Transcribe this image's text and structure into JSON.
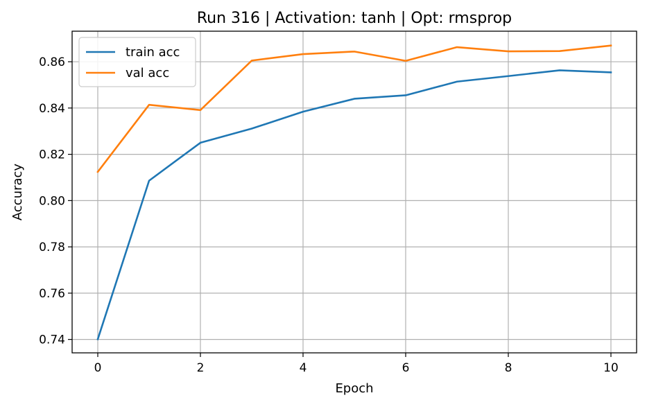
{
  "chart_data": {
    "type": "line",
    "title": "Run 316 | Activation: tanh | Opt: rmsprop",
    "xlabel": "Epoch",
    "ylabel": "Accuracy",
    "xlim": [
      -0.5,
      10.5
    ],
    "ylim": [
      0.7342,
      0.8732
    ],
    "xticks": [
      0,
      2,
      4,
      6,
      8,
      10
    ],
    "xtick_labels": [
      "0",
      "2",
      "4",
      "6",
      "8",
      "10"
    ],
    "yticks": [
      0.74,
      0.76,
      0.78,
      0.8,
      0.82,
      0.84,
      0.86
    ],
    "ytick_labels": [
      "0.74",
      "0.76",
      "0.78",
      "0.80",
      "0.82",
      "0.84",
      "0.86"
    ],
    "grid": true,
    "legend_position": "top-left",
    "x": [
      0,
      1,
      2,
      3,
      4,
      5,
      6,
      7,
      8,
      9,
      10
    ],
    "series": [
      {
        "name": "train acc",
        "color": "#1f77b4",
        "values": [
          0.7401,
          0.8086,
          0.825,
          0.8311,
          0.8384,
          0.844,
          0.8455,
          0.8514,
          0.8538,
          0.8563,
          0.8554
        ]
      },
      {
        "name": "val acc",
        "color": "#ff7f0e",
        "values": [
          0.8124,
          0.8414,
          0.8391,
          0.8605,
          0.8633,
          0.8644,
          0.8604,
          0.8663,
          0.8645,
          0.8646,
          0.867
        ]
      }
    ]
  }
}
